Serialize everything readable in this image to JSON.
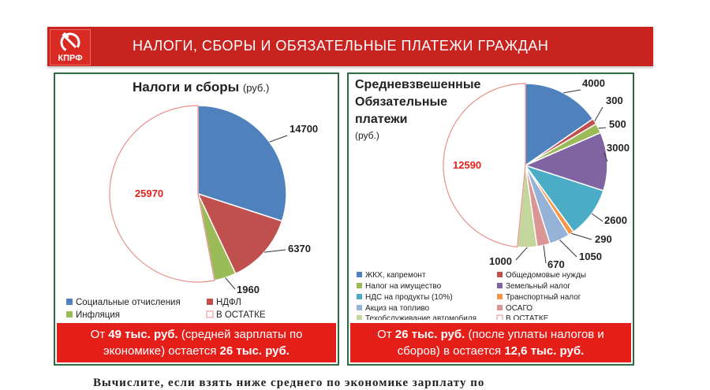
{
  "header": {
    "logo_text": "КПРФ",
    "title": "НАЛОГИ, СБОРЫ И ОБЯЗАТЕЛЬНЫЕ ПЛАТЕЖИ ГРАЖДАН"
  },
  "colors": {
    "banner": "#c8231f",
    "footer": "#e41f1a",
    "panel_border": "#2e6b45"
  },
  "chart_data": [
    {
      "type": "pie",
      "title": "Налоги и сборы",
      "title_unit": "(руб.)",
      "labels": [
        "Социальные отчисления",
        "НДФЛ",
        "Инфляция",
        "В ОСТАТКЕ"
      ],
      "values": [
        14700,
        6370,
        1960,
        25970
      ],
      "value_labels": [
        "14700",
        "6370",
        "1960",
        "25970"
      ],
      "colors": [
        "#4f81bd",
        "#c0504d",
        "#9bbb59",
        "#ffffff"
      ],
      "legend": "bottom",
      "footer_parts": [
        "От ",
        "49 тыс. руб.",
        " (средней зарплаты по",
        "экономике) остается ",
        "26 тыс. руб."
      ]
    },
    {
      "type": "pie",
      "title_lines": [
        "Средневзвешенные",
        "Обязательные",
        "платежи"
      ],
      "title_unit": "(руб.)",
      "labels": [
        "ЖКХ, капремонт",
        "Общедомовые нужды",
        "Налог на имущество",
        "Земельный налог",
        "НДС на продукты (10%)",
        "Транспортный налог",
        "Акциз на топливо",
        "ОСАГО",
        "Техобслуживание автомобиля",
        "В ОСТАТКЕ"
      ],
      "values": [
        4000,
        300,
        500,
        3000,
        2600,
        290,
        1050,
        670,
        1000,
        12590
      ],
      "value_labels": [
        "4000",
        "300",
        "500",
        "3000",
        "2600",
        "290",
        "1050",
        "670",
        "1000",
        "12590"
      ],
      "colors": [
        "#4f81bd",
        "#c0504d",
        "#9bbb59",
        "#8064a2",
        "#4bacc6",
        "#f79646",
        "#95b3d7",
        "#d99694",
        "#c3d69b",
        "#ffffff"
      ],
      "legend": "bottom",
      "footer_parts": [
        "От ",
        "26 тыс. руб.",
        " (после уплаты налогов и",
        "сборов) в остается ",
        "12,6 тыс. руб."
      ]
    }
  ],
  "body_text": "Вычислите, если взять ниже среднего по экономике зарплату по"
}
